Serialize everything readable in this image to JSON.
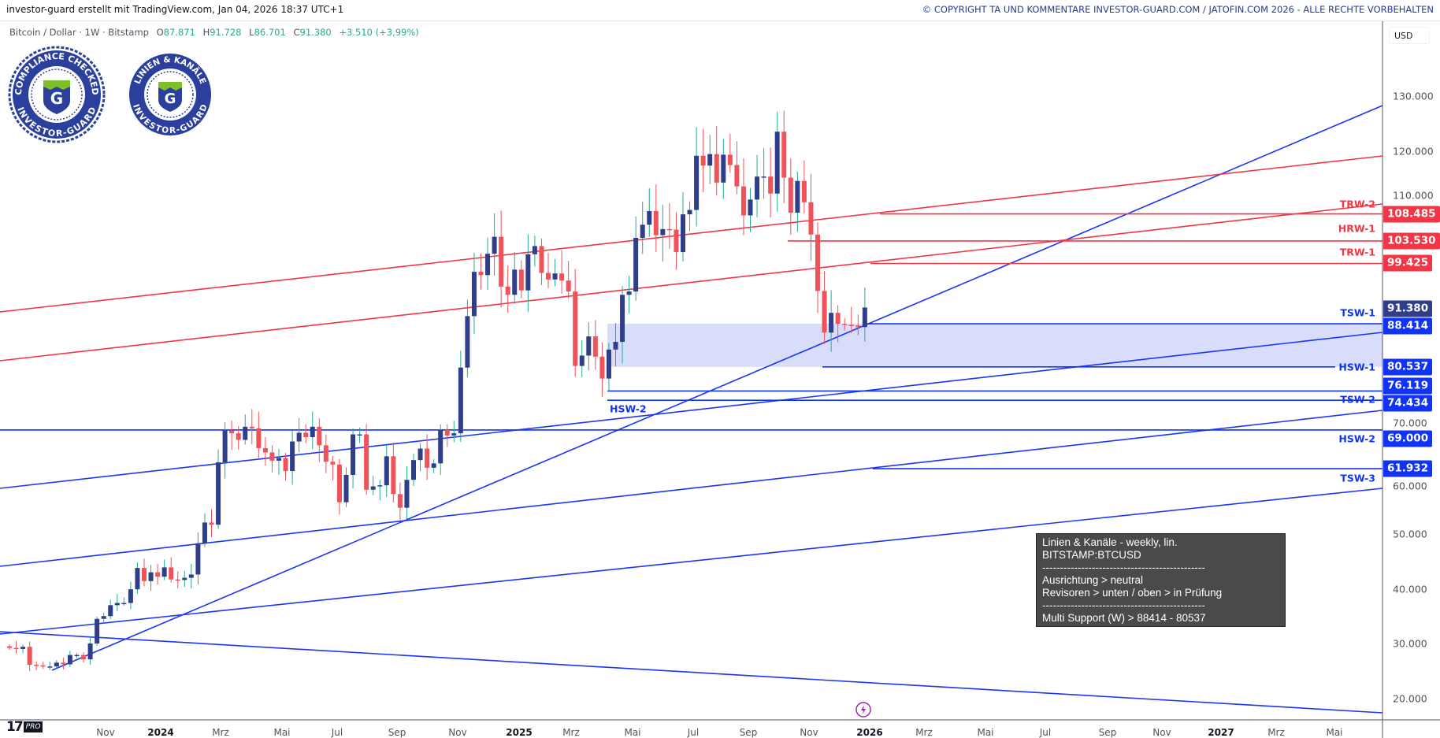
{
  "header": {
    "credit": "investor-guard erstellt mit TradingView.com, Jan 04, 2026 18:37 UTC+1",
    "copyright": "© COPYRIGHT TA UND KOMMENTARE INVESTOR-GUARD.COM / JATOFIN.COM 2026 - ALLE RECHTE VORBEHALTEN"
  },
  "legend": {
    "symbol": "Bitcoin / Dollar · 1W · Bitstamp",
    "o_label": "O",
    "o": "87.871",
    "h_label": "H",
    "h": "91.728",
    "l_label": "L",
    "l": "86.701",
    "c_label": "C",
    "c": "91.380",
    "change": "+3.510 (+3,99%)"
  },
  "logos": {
    "compliance": {
      "top": "COMPLIANCE CHECKED",
      "bottom": "INVESTOR-GUARD",
      "letter": "G"
    },
    "linien": {
      "top": "LINIEN & KANÄLE",
      "bottom": "INVESTOR-GUARD",
      "letter": "G"
    }
  },
  "price_axis": {
    "currency": "USD",
    "ticks": [
      "130.000",
      "120.000",
      "110.000",
      "70.000",
      "60.000",
      "50.000",
      "40.000",
      "30.000",
      "20.000"
    ],
    "tick_values": [
      130,
      120,
      110,
      70,
      60,
      50,
      40,
      30,
      20
    ]
  },
  "time_axis": {
    "labels": [
      "Nov",
      "2024",
      "Mrz",
      "Mai",
      "Jul",
      "Sep",
      "Nov",
      "2025",
      "Mrz",
      "Mai",
      "Jul",
      "Sep",
      "Nov",
      "2026",
      "Mrz",
      "Mai",
      "Jul",
      "Sep",
      "Nov",
      "2027",
      "Mrz",
      "Mai"
    ]
  },
  "levels": [
    {
      "name": "TRW-2",
      "value": 108.485,
      "badge": "108.485",
      "color": "#f23645"
    },
    {
      "name": "HRW-1",
      "value": 103.53,
      "badge": "103.530",
      "color": "#f23645"
    },
    {
      "name": "TRW-1",
      "value": 99.425,
      "badge": "99.425",
      "color": "#f23645"
    },
    {
      "name": "TSW-1",
      "value": 88.414,
      "badge": "88.414",
      "color": "#1033f5"
    },
    {
      "name": "HSW-1",
      "value": 80.537,
      "badge": "80.537",
      "color": "#1033f5"
    },
    {
      "name": "HSW-2",
      "value": 76.119,
      "badge": "76.119",
      "color": "#1033f5"
    },
    {
      "name": "TSW-2",
      "value": 74.434,
      "badge": "74.434",
      "color": "#1033f5"
    },
    {
      "name": "HSW-2",
      "value": 69.0,
      "badge": "69.000",
      "color": "#1033f5"
    },
    {
      "name": "TSW-3",
      "value": 61.932,
      "badge": "61.932",
      "color": "#1033f5"
    }
  ],
  "last_price": {
    "value": 91.38,
    "badge": "91.380",
    "color": "#2f3d8a"
  },
  "support_zone": {
    "from": 80.537,
    "to": 88.414,
    "color": "#d7ddfa"
  },
  "note": {
    "line1": "Linien & Kanäle - weekly, lin.",
    "line2": "BITSTAMP:BTCUSD",
    "sep1": "----------------------------------------------",
    "line3": "Ausrichtung > neutral",
    "line4": "Revisoren > unten / oben > in Prüfung",
    "sep2": "----------------------------------------------",
    "line5": "Multi Support (W) > 88414 - 80537"
  },
  "colors": {
    "up": "#2f3d8a",
    "down": "#f0525a",
    "line_blue": "#1a35f5",
    "line_red": "#f23645"
  },
  "chart_data": {
    "type": "candlestick",
    "title": "Bitcoin / Dollar · 1W · Bitstamp",
    "unit": "USD thousands",
    "interval": "1W",
    "first_week": "2023-07-24",
    "first_open": 29.5,
    "closes": [
      29.2,
      29.0,
      29.4,
      26.1,
      26.0,
      25.8,
      25.8,
      26.5,
      26.2,
      27.9,
      27.9,
      27.1,
      30.0,
      34.5,
      35.0,
      37.0,
      37.4,
      37.4,
      39.9,
      43.8,
      41.4,
      43.0,
      42.2,
      43.9,
      41.7,
      41.6,
      42.0,
      42.6,
      48.3,
      52.1,
      51.7,
      63.1,
      68.9,
      68.4,
      67.2,
      69.6,
      69.3,
      65.7,
      64.9,
      63.4,
      63.9,
      61.5,
      66.9,
      68.5,
      67.7,
      69.6,
      66.2,
      63.2,
      62.7,
      55.8,
      60.8,
      68.2,
      68.2,
      58.1,
      58.7,
      58.9,
      64.2,
      57.3,
      54.8,
      59.9,
      63.5,
      65.6,
      62.1,
      62.9,
      69.0,
      68.0,
      68.4,
      80.4,
      89.8,
      97.9,
      97.3,
      101.2,
      104.3,
      95.2,
      93.7,
      98.3,
      94.5,
      101.1,
      102.6,
      97.7,
      96.5,
      97.6,
      96.3,
      94.3,
      80.7,
      82.6,
      86.1,
      82.4,
      78.4,
      83.7,
      85.1,
      93.7,
      94.3,
      104.1,
      106.5,
      109.0,
      104.6,
      105.7,
      105.6,
      101.5,
      108.4,
      109.2,
      119.1,
      117.3,
      119.4,
      114.2,
      119.3,
      117.4,
      113.5,
      108.2,
      111.1,
      115.3,
      115.3,
      112.2,
      123.5,
      115.1,
      108.7,
      114.5,
      110.6,
      104.7,
      94.4,
      86.8,
      90.4,
      88.4,
      88.2,
      88.1,
      87.8,
      91.38
    ],
    "ylim": [
      15,
      140
    ]
  }
}
